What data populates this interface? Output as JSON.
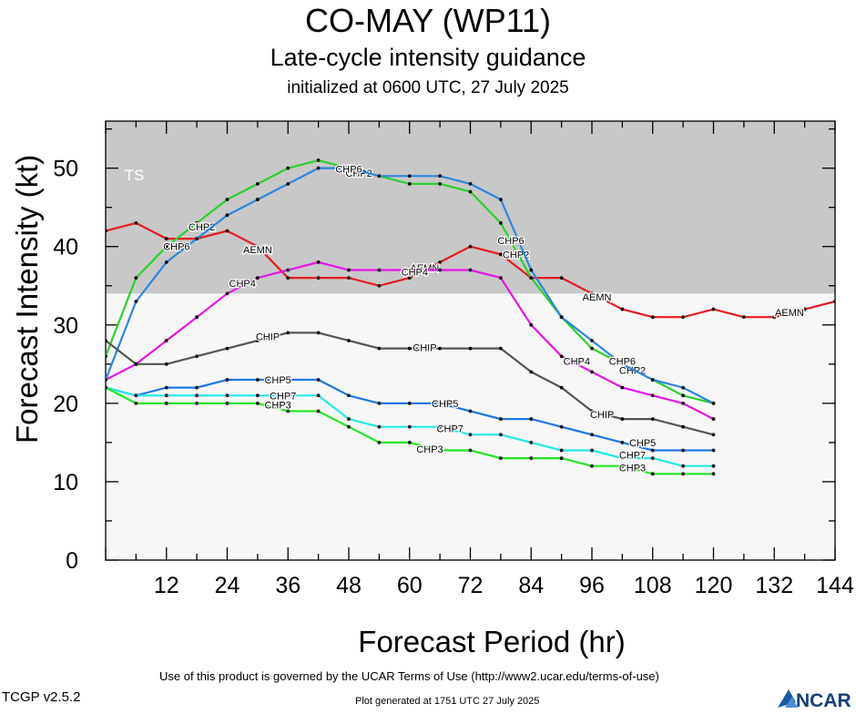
{
  "header": {
    "title": "CO-MAY (WP11)",
    "subtitle": "Late-cycle intensity guidance",
    "init": "initialized at 0600 UTC, 27 July 2025"
  },
  "footer": {
    "terms": "Use of this product is governed by the UCAR Terms of Use (http://www2.ucar.edu/terms-of-use)",
    "version": "TCGP v2.5.2",
    "generated": "Plot generated at 1751 UTC   27 July 2025",
    "logo_text": "NCAR"
  },
  "chart_data": {
    "type": "line",
    "xlabel": "Forecast Period (hr)",
    "ylabel": "Forecast Intensity (kt)",
    "xlim": [
      0,
      144
    ],
    "ylim": [
      0,
      56
    ],
    "xticks": [
      12,
      24,
      36,
      48,
      60,
      72,
      84,
      96,
      108,
      120,
      132,
      144
    ],
    "yticks": [
      0,
      10,
      20,
      30,
      40,
      50
    ],
    "threshold_band": {
      "label": "TS",
      "from": 34,
      "to": 56,
      "color": "#c8c8c8"
    },
    "background_color": "#f7f7f7",
    "series": [
      {
        "name": "AEMN",
        "color": "#e8191c",
        "x": [
          0,
          6,
          12,
          18,
          24,
          30,
          36,
          42,
          48,
          54,
          60,
          66,
          72,
          78,
          84,
          90,
          96,
          102,
          108,
          114,
          120,
          126,
          132,
          138,
          144
        ],
        "y": [
          42,
          43,
          41,
          41,
          42,
          40,
          36,
          36,
          36,
          35,
          36,
          38,
          40,
          39,
          36,
          36,
          34,
          32,
          31,
          31,
          32,
          31,
          31,
          32,
          33
        ],
        "labels": [
          {
            "x": 30,
            "y": 39.6
          },
          {
            "x": 63,
            "y": 37.3
          },
          {
            "x": 97,
            "y": 33.6
          },
          {
            "x": 135,
            "y": 31.6
          }
        ]
      },
      {
        "name": "CHP2",
        "color": "#2bd12b",
        "x": [
          0,
          6,
          12,
          18,
          24,
          30,
          36,
          42,
          48,
          54,
          60,
          66,
          72,
          78,
          84,
          90,
          96,
          102,
          108,
          114,
          120
        ],
        "y": [
          26,
          36,
          40,
          43,
          46,
          48,
          50,
          51,
          50,
          49,
          48,
          48,
          47,
          43,
          36,
          31,
          27,
          25,
          23,
          21,
          20
        ],
        "labels": [
          {
            "x": 19,
            "y": 42.5
          },
          {
            "x": 50,
            "y": 49.4
          },
          {
            "x": 81,
            "y": 39
          },
          {
            "x": 104,
            "y": 24.2
          }
        ]
      },
      {
        "name": "CHP6",
        "color": "#2b86e3",
        "x": [
          0,
          6,
          12,
          18,
          24,
          30,
          36,
          42,
          48,
          54,
          60,
          66,
          72,
          78,
          84,
          90,
          96,
          102,
          108,
          114,
          120
        ],
        "y": [
          23,
          33,
          38,
          41,
          44,
          46,
          48,
          50,
          50,
          49,
          49,
          49,
          48,
          46,
          37,
          31,
          28,
          25,
          23,
          22,
          20
        ],
        "labels": [
          {
            "x": 14,
            "y": 40
          },
          {
            "x": 48,
            "y": 49.9
          },
          {
            "x": 80,
            "y": 40.8
          },
          {
            "x": 102,
            "y": 25.4
          }
        ]
      },
      {
        "name": "CHP4",
        "color": "#e615e6",
        "x": [
          0,
          6,
          12,
          18,
          24,
          30,
          36,
          42,
          48,
          54,
          60,
          66,
          72,
          78,
          84,
          90,
          96,
          102,
          108,
          114,
          120
        ],
        "y": [
          23,
          25,
          28,
          31,
          34,
          36,
          37,
          38,
          37,
          37,
          37,
          37,
          37,
          36,
          30,
          26,
          24,
          22,
          21,
          20,
          18
        ],
        "labels": [
          {
            "x": 27,
            "y": 35.3
          },
          {
            "x": 61,
            "y": 36.8
          },
          {
            "x": 93,
            "y": 25.4
          }
        ]
      },
      {
        "name": "CHIP",
        "color": "#555555",
        "x": [
          0,
          6,
          12,
          18,
          24,
          30,
          36,
          42,
          48,
          54,
          60,
          66,
          72,
          78,
          84,
          90,
          96,
          102,
          108,
          114,
          120
        ],
        "y": [
          28,
          25,
          25,
          26,
          27,
          28,
          29,
          29,
          28,
          27,
          27,
          27,
          27,
          27,
          24,
          22,
          19,
          18,
          18,
          17,
          16
        ],
        "labels": [
          {
            "x": 32,
            "y": 28.5
          },
          {
            "x": 63,
            "y": 27.1
          },
          {
            "x": 98,
            "y": 18.6
          }
        ]
      },
      {
        "name": "CHP5",
        "color": "#1e78e6",
        "x": [
          0,
          6,
          12,
          18,
          24,
          30,
          36,
          42,
          48,
          54,
          60,
          66,
          72,
          78,
          84,
          90,
          96,
          102,
          108,
          114,
          120
        ],
        "y": [
          22,
          21,
          22,
          22,
          23,
          23,
          23,
          23,
          21,
          20,
          20,
          20,
          19,
          18,
          18,
          17,
          16,
          15,
          14,
          14,
          14
        ],
        "labels": [
          {
            "x": 34,
            "y": 23
          },
          {
            "x": 67,
            "y": 20
          },
          {
            "x": 106,
            "y": 15
          }
        ]
      },
      {
        "name": "CHP7",
        "color": "#22e8e8",
        "x": [
          0,
          6,
          12,
          18,
          24,
          30,
          36,
          42,
          48,
          54,
          60,
          66,
          72,
          78,
          84,
          90,
          96,
          102,
          108,
          114,
          120
        ],
        "y": [
          22,
          21,
          21,
          21,
          21,
          21,
          21,
          21,
          18,
          17,
          17,
          17,
          16,
          16,
          15,
          14,
          14,
          13,
          13,
          12,
          12
        ],
        "labels": [
          {
            "x": 35,
            "y": 21
          },
          {
            "x": 68,
            "y": 16.8
          },
          {
            "x": 104,
            "y": 13.4
          }
        ]
      },
      {
        "name": "CHP3",
        "color": "#22e622",
        "x": [
          0,
          6,
          12,
          18,
          24,
          30,
          36,
          42,
          48,
          54,
          60,
          66,
          72,
          78,
          84,
          90,
          96,
          102,
          108,
          114,
          120
        ],
        "y": [
          22,
          20,
          20,
          20,
          20,
          20,
          19,
          19,
          17,
          15,
          15,
          14,
          14,
          13,
          13,
          13,
          12,
          12,
          11,
          11,
          11
        ],
        "labels": [
          {
            "x": 34,
            "y": 19.8
          },
          {
            "x": 64,
            "y": 14.2
          },
          {
            "x": 104,
            "y": 11.8
          }
        ]
      }
    ]
  }
}
